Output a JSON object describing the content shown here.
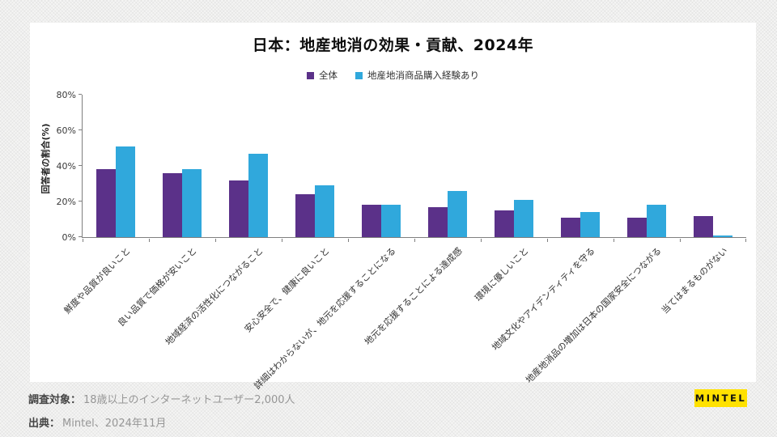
{
  "chart_data": {
    "type": "bar",
    "title": "日本：地産地消の効果・貢献、2024年",
    "ylabel": "回答者の割合(%)",
    "xlabel": "",
    "ylim": [
      0,
      80
    ],
    "ytick_labels": [
      "0%",
      "20%",
      "40%",
      "60%",
      "80%"
    ],
    "grid": false,
    "legend_position": "top-center",
    "categories": [
      "鮮度や品質が良いこと",
      "良い品質で価格が安いこと",
      "地域経済の活性化につながること",
      "安心安全で、健康に良いこと",
      "詳細はわからないが、地元を応援することになる",
      "地元を応援することによる達成感",
      "環境に優しいこと",
      "地域文化やアイデンティティを守る",
      "地産地消品の増加は日本の国家安全につながる",
      "当てはまるものがない"
    ],
    "series": [
      {
        "name": "全体",
        "color": "#5B3189",
        "values": [
          38,
          36,
          32,
          24,
          18,
          17,
          15,
          11,
          11,
          12
        ]
      },
      {
        "name": "地産地消商品購入経験あり",
        "color": "#30A8DC",
        "values": [
          51,
          38,
          47,
          29,
          18,
          26,
          21,
          14,
          18,
          1
        ]
      }
    ]
  },
  "footer": {
    "survey_label": "調査対象：",
    "survey_text": "18歳以上のインターネットユーザー2,000人",
    "source_label": "出典：",
    "source_text": "Mintel、2024年11月"
  },
  "logo": {
    "text": "MINTEL",
    "bg_color": "#FFE100"
  }
}
